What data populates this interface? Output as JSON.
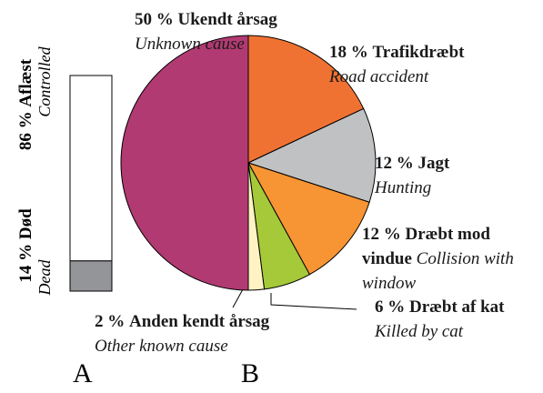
{
  "chart_data": [
    {
      "type": "stacked-bar",
      "panel": "A",
      "categories": [
        "Aflæst",
        "Død"
      ],
      "subtitles": [
        "Controlled",
        "Dead"
      ],
      "values": [
        86,
        14
      ],
      "value_labels": [
        "86 %",
        "14 %"
      ],
      "colors": [
        "#ffffff",
        "#939598"
      ]
    },
    {
      "type": "pie",
      "panel": "B",
      "categories": [
        "Trafikdræbt",
        "Jagt",
        "Dræbt mod vindue",
        "Dræbt af kat",
        "Anden kendt årsag",
        "Ukendt årsag"
      ],
      "subtitles": [
        "Road accident",
        "Hunting",
        "Collision with window",
        "Killed by cat",
        "Other known cause",
        "Unknown cause"
      ],
      "values": [
        18,
        12,
        12,
        6,
        2,
        50
      ],
      "value_labels": [
        "18 %",
        "12 %",
        "12 %",
        "6 %",
        "2 %",
        "50 %"
      ],
      "colors": [
        "#f07233",
        "#bfc1c3",
        "#f79433",
        "#a5c939",
        "#fff3c4",
        "#b23a72"
      ]
    }
  ]
}
